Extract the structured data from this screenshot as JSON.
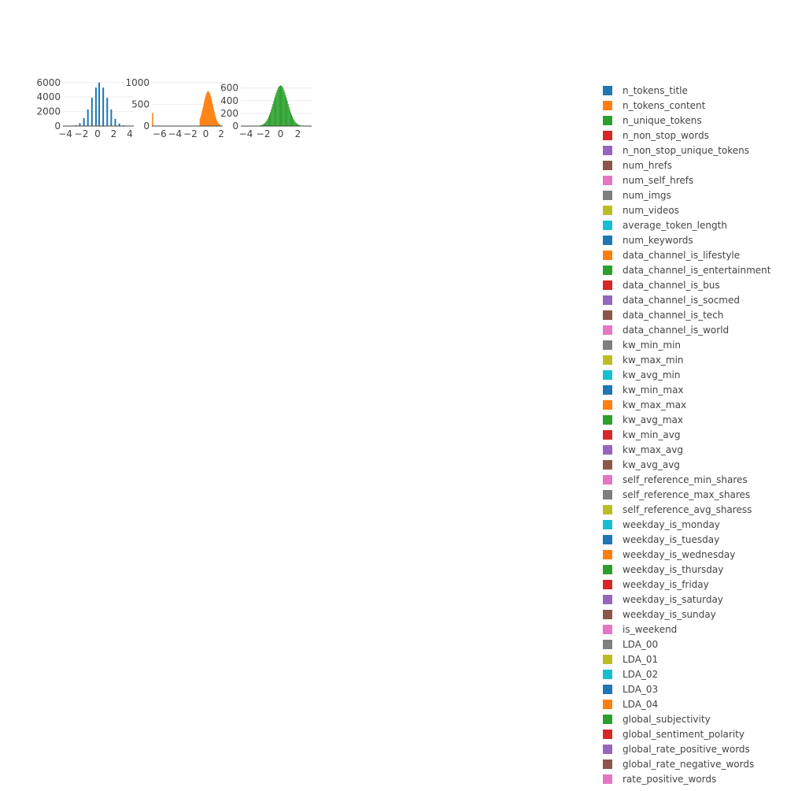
{
  "chart_data": {
    "type": "histogram-grid",
    "title": "",
    "grid_rows": 10,
    "grid_cols": 6,
    "legend_placement": "right",
    "gridlines": true,
    "legend": [
      {
        "name": "n_tokens_title",
        "color": "#1f77b4"
      },
      {
        "name": "n_tokens_content",
        "color": "#ff7f0e"
      },
      {
        "name": "n_unique_tokens",
        "color": "#2ca02c"
      },
      {
        "name": "n_non_stop_words",
        "color": "#d62728"
      },
      {
        "name": "n_non_stop_unique_tokens",
        "color": "#9467bd"
      },
      {
        "name": "num_hrefs",
        "color": "#8c564b"
      },
      {
        "name": "num_self_hrefs",
        "color": "#e377c2"
      },
      {
        "name": "num_imgs",
        "color": "#7f7f7f"
      },
      {
        "name": "num_videos",
        "color": "#bcbd22"
      },
      {
        "name": "average_token_length",
        "color": "#17becf"
      },
      {
        "name": "num_keywords",
        "color": "#1f77b4"
      },
      {
        "name": "data_channel_is_lifestyle",
        "color": "#ff7f0e"
      },
      {
        "name": "data_channel_is_entertainment",
        "color": "#2ca02c"
      },
      {
        "name": "data_channel_is_bus",
        "color": "#d62728"
      },
      {
        "name": "data_channel_is_socmed",
        "color": "#9467bd"
      },
      {
        "name": "data_channel_is_tech",
        "color": "#8c564b"
      },
      {
        "name": "data_channel_is_world",
        "color": "#e377c2"
      },
      {
        "name": "kw_min_min",
        "color": "#7f7f7f"
      },
      {
        "name": "kw_max_min",
        "color": "#bcbd22"
      },
      {
        "name": "kw_avg_min",
        "color": "#17becf"
      },
      {
        "name": "kw_min_max",
        "color": "#1f77b4"
      },
      {
        "name": "kw_max_max",
        "color": "#ff7f0e"
      },
      {
        "name": "kw_avg_max",
        "color": "#2ca02c"
      },
      {
        "name": "kw_min_avg",
        "color": "#d62728"
      },
      {
        "name": "kw_max_avg",
        "color": "#9467bd"
      },
      {
        "name": "kw_avg_avg",
        "color": "#8c564b"
      },
      {
        "name": "self_reference_min_shares",
        "color": "#e377c2"
      },
      {
        "name": "self_reference_max_shares",
        "color": "#7f7f7f"
      },
      {
        "name": "self_reference_avg_sharess",
        "color": "#bcbd22"
      },
      {
        "name": "weekday_is_monday",
        "color": "#17becf"
      },
      {
        "name": "weekday_is_tuesday",
        "color": "#1f77b4"
      },
      {
        "name": "weekday_is_wednesday",
        "color": "#ff7f0e"
      },
      {
        "name": "weekday_is_thursday",
        "color": "#2ca02c"
      },
      {
        "name": "weekday_is_friday",
        "color": "#d62728"
      },
      {
        "name": "weekday_is_saturday",
        "color": "#9467bd"
      },
      {
        "name": "weekday_is_sunday",
        "color": "#8c564b"
      },
      {
        "name": "is_weekend",
        "color": "#e377c2"
      },
      {
        "name": "LDA_00",
        "color": "#7f7f7f"
      },
      {
        "name": "LDA_01",
        "color": "#bcbd22"
      },
      {
        "name": "LDA_02",
        "color": "#17becf"
      },
      {
        "name": "LDA_03",
        "color": "#1f77b4"
      },
      {
        "name": "LDA_04",
        "color": "#ff7f0e"
      },
      {
        "name": "global_subjectivity",
        "color": "#2ca02c"
      },
      {
        "name": "global_sentiment_polarity",
        "color": "#d62728"
      },
      {
        "name": "global_rate_positive_words",
        "color": "#9467bd"
      },
      {
        "name": "global_rate_negative_words",
        "color": "#8c564b"
      },
      {
        "name": "rate_positive_words",
        "color": "#e377c2"
      }
    ],
    "subplots": [
      {
        "color": "#1f77b4",
        "kind": "sparse",
        "xrange": [
          -4.3,
          4.5
        ],
        "yrange": [
          0,
          6300
        ],
        "xticks": [
          [
            -4,
            "−4"
          ],
          [
            -2,
            "−2"
          ],
          [
            0,
            "0"
          ],
          [
            2,
            "2"
          ],
          [
            4,
            "4"
          ]
        ],
        "yticks": [
          [
            0,
            "0"
          ],
          [
            2000,
            "2000"
          ],
          [
            4000,
            "4000"
          ],
          [
            6000,
            "6000"
          ]
        ],
        "bars": [
          [
            -3.2,
            30
          ],
          [
            -2.7,
            120
          ],
          [
            -2.2,
            400
          ],
          [
            -1.7,
            1100
          ],
          [
            -1.2,
            2300
          ],
          [
            -0.7,
            3900
          ],
          [
            -0.2,
            5300
          ],
          [
            0.2,
            6000
          ],
          [
            0.7,
            5300
          ],
          [
            1.2,
            3900
          ],
          [
            1.7,
            2300
          ],
          [
            2.2,
            1000
          ],
          [
            2.7,
            350
          ],
          [
            3.2,
            100
          ],
          [
            3.7,
            30
          ]
        ]
      },
      {
        "color": "#ff7f0e",
        "kind": "bell",
        "xrange": [
          -7,
          2.2
        ],
        "yrange": [
          0,
          1050
        ],
        "xticks": [
          [
            -6,
            "−6"
          ],
          [
            -4,
            "−4"
          ],
          [
            -2,
            "−2"
          ],
          [
            0,
            "0"
          ],
          [
            2,
            "2"
          ]
        ],
        "yticks": [
          [
            0,
            "0"
          ],
          [
            500,
            "500"
          ],
          [
            1000,
            "1000"
          ]
        ],
        "mu": 0.3,
        "sigma": 0.6,
        "peak": 800,
        "lo": -0.8,
        "hi": 1.9,
        "n": 40,
        "extra": [
          [
            -6.9,
            300
          ]
        ]
      },
      {
        "color": "#2ca02c",
        "kind": "bell",
        "xrange": [
          -4.6,
          3.6
        ],
        "yrange": [
          0,
          720
        ],
        "xticks": [
          [
            -4,
            "−4"
          ],
          [
            -2,
            "−2"
          ],
          [
            0,
            "0"
          ],
          [
            2,
            "2"
          ]
        ],
        "yticks": [
          [
            0,
            "0"
          ],
          [
            200,
            "200"
          ],
          [
            400,
            "400"
          ],
          [
            600,
            "600"
          ]
        ],
        "mu": 0,
        "sigma": 0.8,
        "peak": 640,
        "lo": -2.7,
        "hi": 2.7,
        "n": 55
      }
    ]
  }
}
